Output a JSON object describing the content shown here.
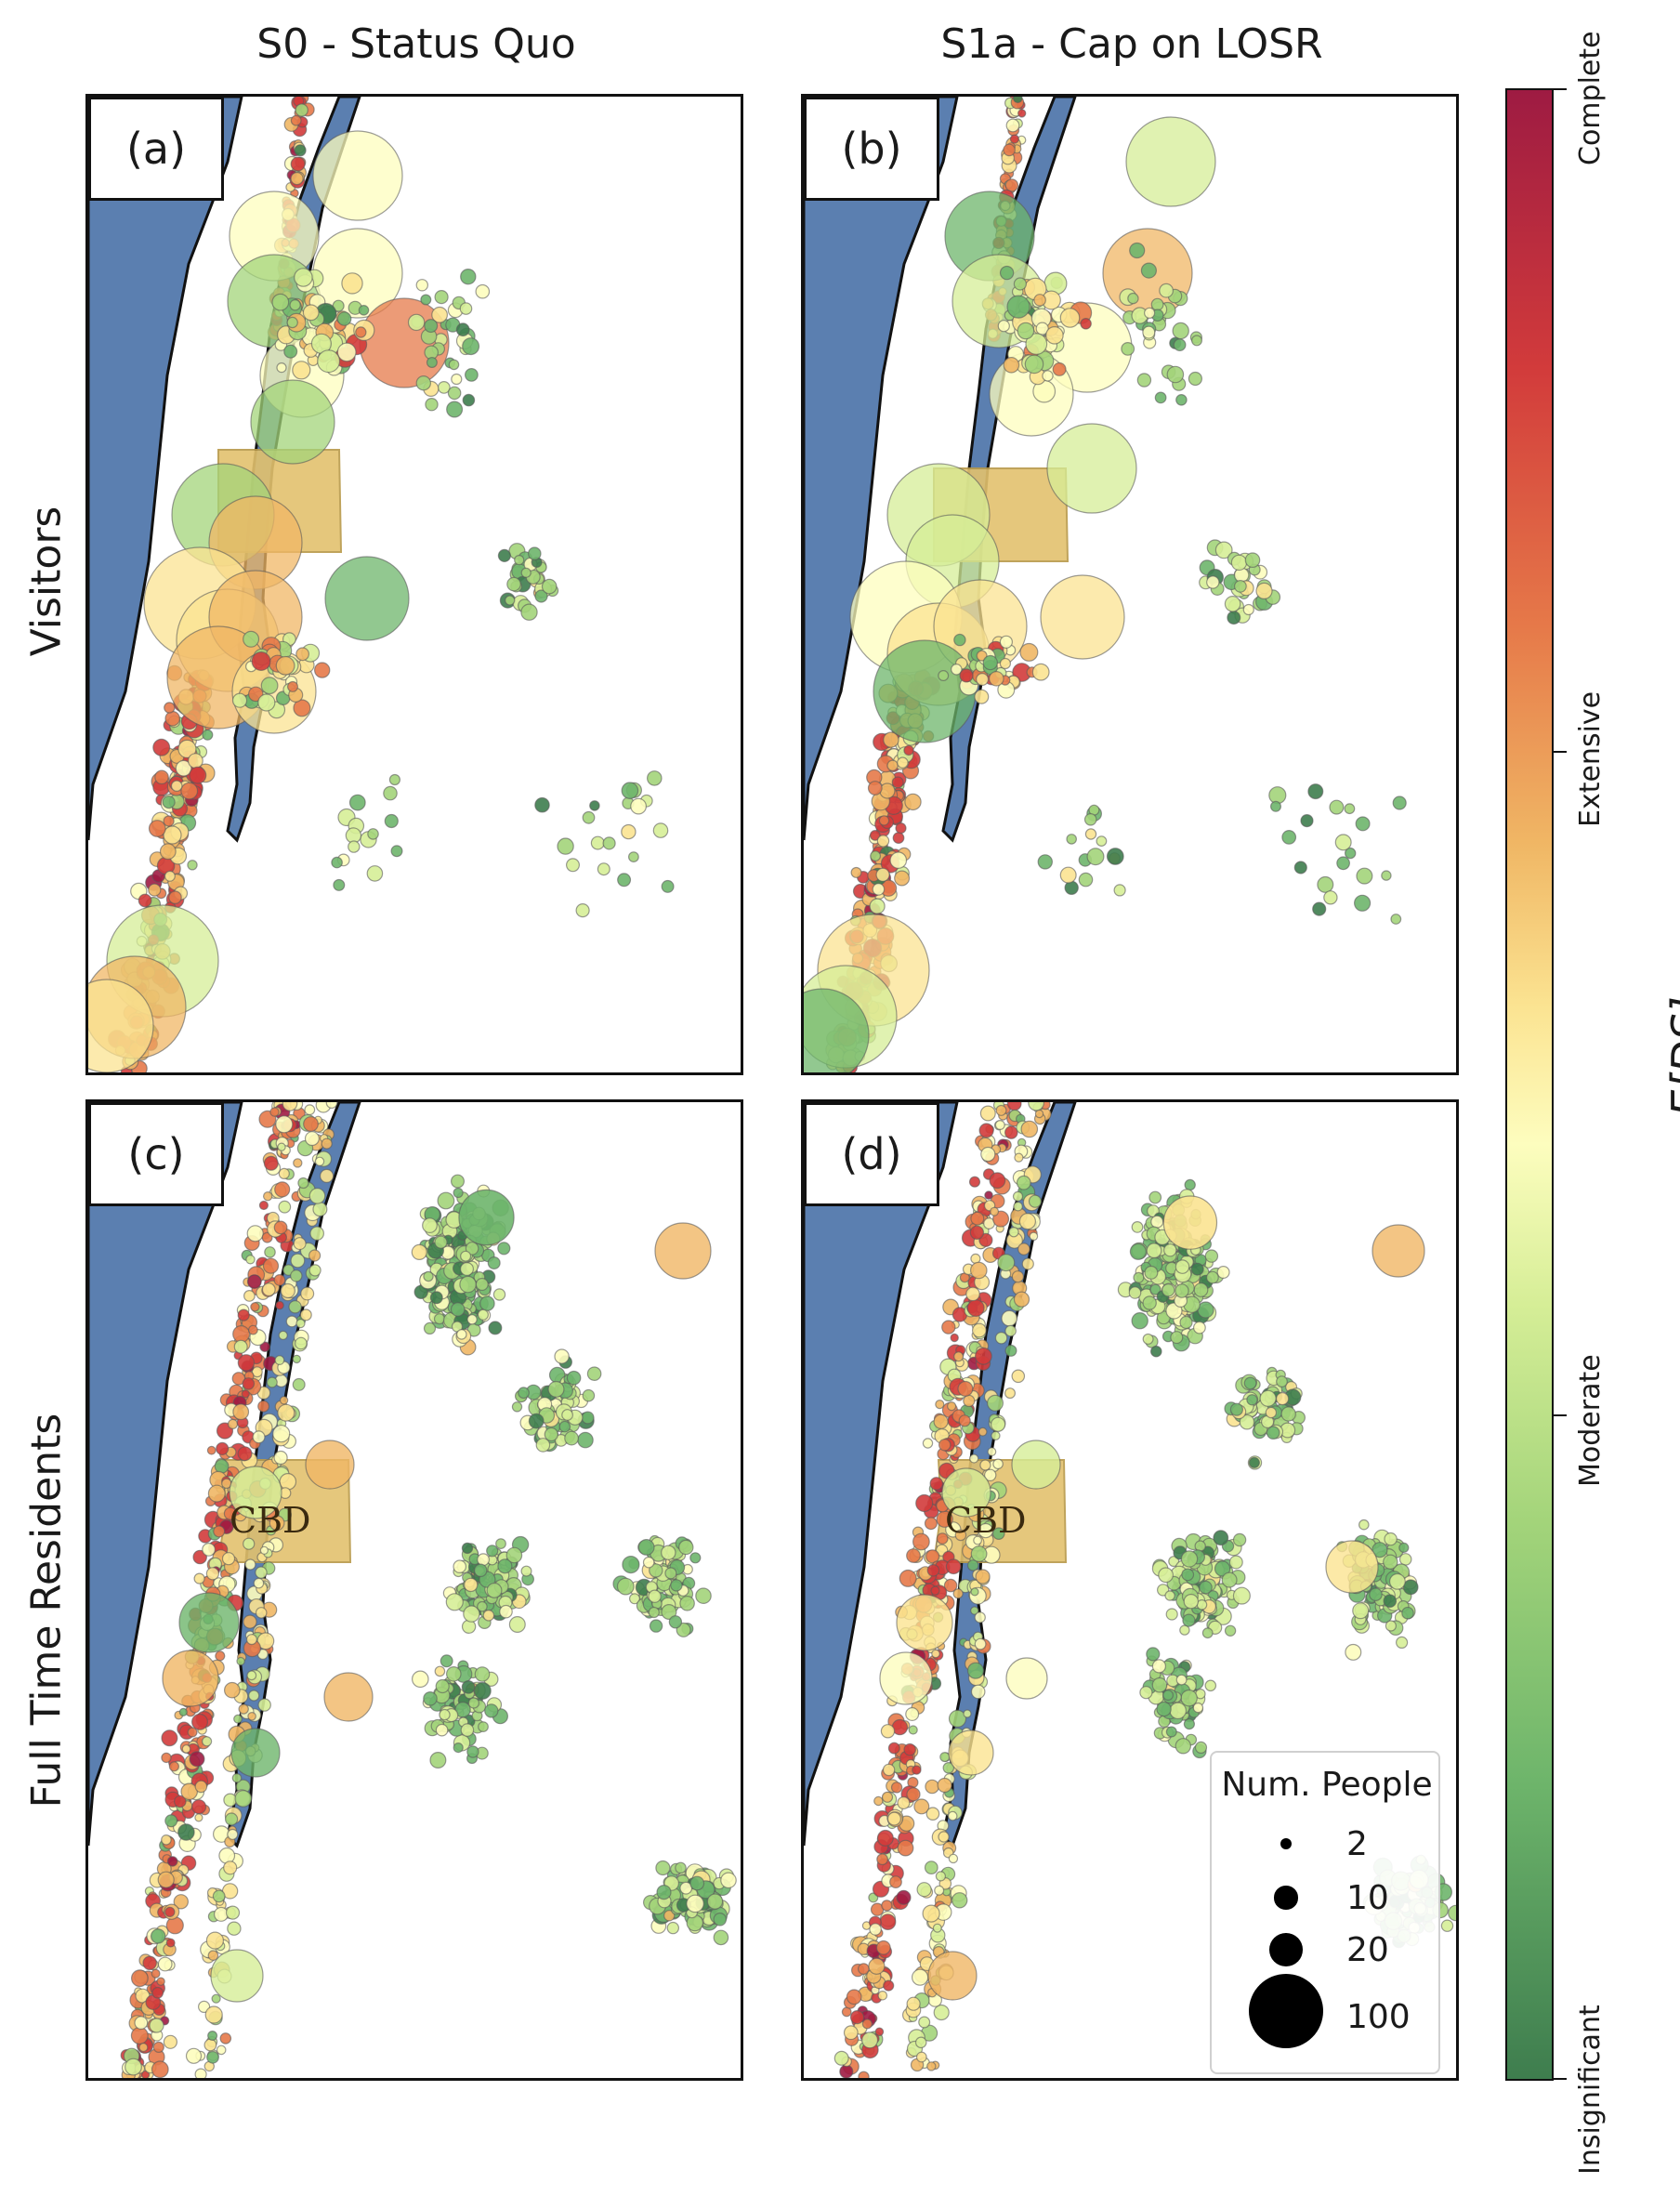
{
  "columns": [
    "S0 - Status Quo",
    "S1a - Cap on LOSR"
  ],
  "rows": [
    "Visitors",
    "Full Time Residents"
  ],
  "panels": [
    {
      "label": "(a)",
      "cbd": ""
    },
    {
      "label": "(b)",
      "cbd": ""
    },
    {
      "label": "(c)",
      "cbd": "CBD"
    },
    {
      "label": "(d)",
      "cbd": "CBD"
    }
  ],
  "colorbar": {
    "title": "E[DS]",
    "ticks": [
      "Complete",
      "Extensive",
      "Moderate",
      "Insignificant"
    ],
    "colors": [
      "#9e1b42",
      "#d23b3b",
      "#e67949",
      "#f0b765",
      "#fbe391",
      "#fdfdbe",
      "#d6ee97",
      "#a3d47a",
      "#6eb56b",
      "#3e7d4e"
    ]
  },
  "legend": {
    "title": "Num. People",
    "entries": [
      {
        "label": "2",
        "people": 2
      },
      {
        "label": "10",
        "people": 10
      },
      {
        "label": "20",
        "people": 20
      },
      {
        "label": "100",
        "people": 100
      }
    ]
  },
  "colors": {
    "water": "#5b7fb0",
    "cbd_fill": "#e3c26e",
    "panel_border": "#111111"
  }
}
